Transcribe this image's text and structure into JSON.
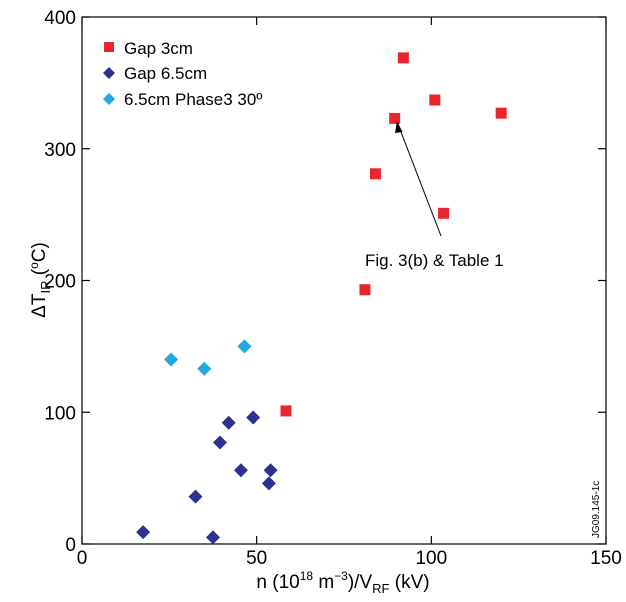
{
  "chart_data": {
    "type": "scatter",
    "xlabel": {
      "base": "n (10",
      "exp1": "18",
      "mid": " m",
      "exp2": "−3",
      "mid2": ")/V",
      "sub": "RF",
      "tail": " (kV)"
    },
    "ylabel": {
      "base": "ΔT",
      "sub": "IR",
      "mid": " (",
      "sup": "o",
      "tail": "C)"
    },
    "xlim": [
      0,
      150
    ],
    "ylim": [
      0,
      400
    ],
    "xticks": [
      0,
      50,
      100,
      150
    ],
    "yticks": [
      0,
      100,
      200,
      300,
      400
    ],
    "grid": false,
    "legend_position": "top-left",
    "series": [
      {
        "name": "Gap 3cm",
        "marker": "square",
        "color": "#e8262b",
        "x": [
          58.4,
          81.0,
          84.0,
          89.5,
          92.0,
          101.0,
          103.5,
          120.0
        ],
        "y": [
          101,
          193,
          281,
          323,
          369,
          337,
          251,
          327
        ]
      },
      {
        "name": "Gap 6.5cm",
        "marker": "diamond",
        "color": "#2e3192",
        "x": [
          17.5,
          32.5,
          37.5,
          39.5,
          42.0,
          45.5,
          49.0,
          53.5,
          54.0
        ],
        "y": [
          9,
          36,
          5,
          77,
          92,
          56,
          96,
          46,
          56
        ]
      },
      {
        "name": "6.5cm Phase3 30º",
        "marker": "diamond",
        "color": "#1fa9e1",
        "x": [
          25.5,
          35.0,
          46.5
        ],
        "y": [
          140,
          133,
          150
        ]
      }
    ],
    "annotations": [
      {
        "text": "Fig. 3(b) & Table 1",
        "target_x": 89.5,
        "target_y": 323
      }
    ]
  },
  "figure_id": "JG09.145-1c"
}
